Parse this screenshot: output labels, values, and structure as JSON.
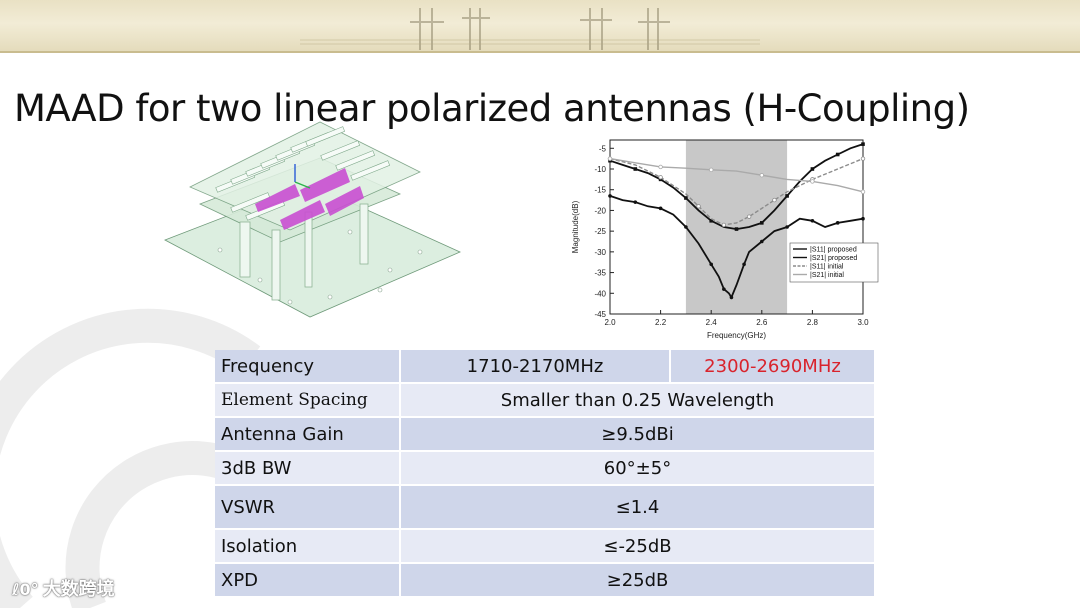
{
  "slide": {
    "title": "MAAD for two linear polarized antennas (H-Coupling)"
  },
  "chart_data": {
    "type": "line",
    "xlabel": "Frequency(GHz)",
    "ylabel": "Magnitude(dB)",
    "xlim": [
      2.0,
      3.0
    ],
    "ylim": [
      -45,
      -3
    ],
    "xticks": [
      "2.0",
      "2.2",
      "2.4",
      "2.6",
      "2.8",
      "3.0"
    ],
    "yticks": [
      "-5",
      "-10",
      "-15",
      "-20",
      "-25",
      "-30",
      "-35",
      "-40",
      "-45"
    ],
    "highlight_band": [
      2.3,
      2.7
    ],
    "legend_position": "bottom-right",
    "series": [
      {
        "name": "|S11| proposed",
        "color": "#111111",
        "style": "solid-square",
        "x": [
          2.0,
          2.05,
          2.1,
          2.15,
          2.2,
          2.25,
          2.3,
          2.35,
          2.4,
          2.45,
          2.5,
          2.55,
          2.6,
          2.65,
          2.7,
          2.75,
          2.8,
          2.85,
          2.9,
          2.95,
          3.0
        ],
        "y": [
          -8,
          -9,
          -10,
          -11,
          -12.5,
          -14.5,
          -17,
          -20,
          -22.5,
          -24,
          -24.5,
          -24,
          -23,
          -20,
          -16.5,
          -13,
          -10,
          -8,
          -6.5,
          -5,
          -4
        ]
      },
      {
        "name": "|S21| proposed",
        "color": "#111111",
        "style": "solid-circle",
        "x": [
          2.0,
          2.05,
          2.1,
          2.15,
          2.2,
          2.25,
          2.3,
          2.35,
          2.4,
          2.43,
          2.45,
          2.47,
          2.48,
          2.5,
          2.53,
          2.55,
          2.6,
          2.65,
          2.7,
          2.75,
          2.8,
          2.85,
          2.9,
          2.95,
          3.0
        ],
        "y": [
          -16.5,
          -17.5,
          -18,
          -19,
          -19.5,
          -21,
          -24,
          -28,
          -33,
          -36,
          -39,
          -40,
          -41,
          -38,
          -33,
          -30,
          -27.5,
          -25,
          -24,
          -22,
          -22.5,
          -24,
          -23,
          -22.5,
          -22
        ]
      },
      {
        "name": "|S11| initial",
        "color": "#8c8c8c",
        "style": "dashed",
        "x": [
          2.0,
          2.1,
          2.2,
          2.3,
          2.35,
          2.4,
          2.45,
          2.5,
          2.55,
          2.6,
          2.65,
          2.7,
          2.8,
          2.9,
          3.0
        ],
        "y": [
          -7.5,
          -9,
          -12,
          -16,
          -19,
          -22,
          -23.5,
          -23,
          -21.5,
          -19.5,
          -17.5,
          -15.5,
          -12.5,
          -10,
          -7.5
        ]
      },
      {
        "name": "|S21| initial",
        "color": "#aaaaaa",
        "style": "solid-open",
        "x": [
          2.0,
          2.1,
          2.2,
          2.3,
          2.4,
          2.5,
          2.6,
          2.7,
          2.8,
          2.9,
          3.0
        ],
        "y": [
          -7.5,
          -8.5,
          -9.5,
          -9.8,
          -10.2,
          -10.5,
          -11.5,
          -12.5,
          -13,
          -14,
          -15.5
        ]
      }
    ]
  },
  "spec_table": {
    "header": {
      "label": "Frequency",
      "band1": "1710-2170MHz",
      "band2": "2300-2690MHz"
    },
    "rows": [
      {
        "label": "Element Spacing",
        "value": "Smaller than 0.25 Wavelength"
      },
      {
        "label": "Antenna Gain",
        "value": "≥9.5dBi"
      },
      {
        "label": "3dB BW",
        "value": "60°±5°"
      },
      {
        "label": "VSWR",
        "value": "≤1.4"
      },
      {
        "label": "Isolation",
        "value": "≤-25dB"
      },
      {
        "label": "XPD",
        "value": "≥25dB"
      }
    ]
  },
  "watermark": {
    "text": "大数跨境",
    "mark": "ℓ0°"
  },
  "colors": {
    "accent_red": "#d9232c",
    "row_dark": "#cfd6ea",
    "row_light": "#e7eaf5",
    "band_gray": "#c8c8c8"
  },
  "icons": {
    "bg_logo": "faint-ring-logo",
    "antenna": "antenna-3d-model"
  }
}
